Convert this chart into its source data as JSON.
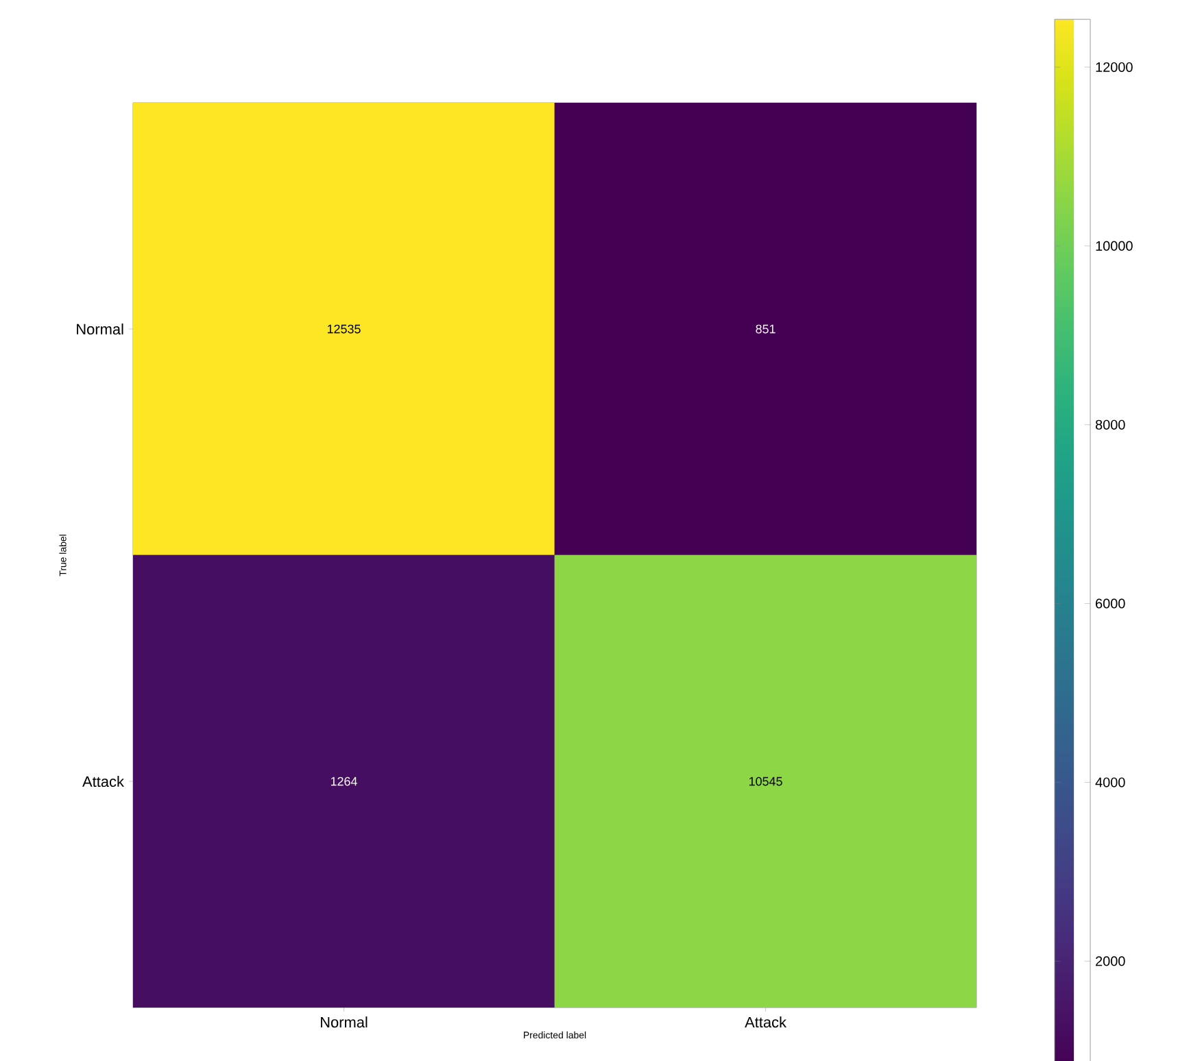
{
  "chart_data": {
    "type": "heatmap",
    "categories": [
      "Normal",
      "Attack"
    ],
    "y_categories": [
      "Normal",
      "Attack"
    ],
    "cells": [
      [
        12535,
        851
      ],
      [
        1264,
        10545
      ]
    ],
    "xlabel": "Predicted label",
    "ylabel": "True label",
    "clim": [
      851,
      12535
    ],
    "cticks": [
      2000,
      4000,
      6000,
      8000,
      10000,
      12000
    ],
    "data_labels": true
  }
}
